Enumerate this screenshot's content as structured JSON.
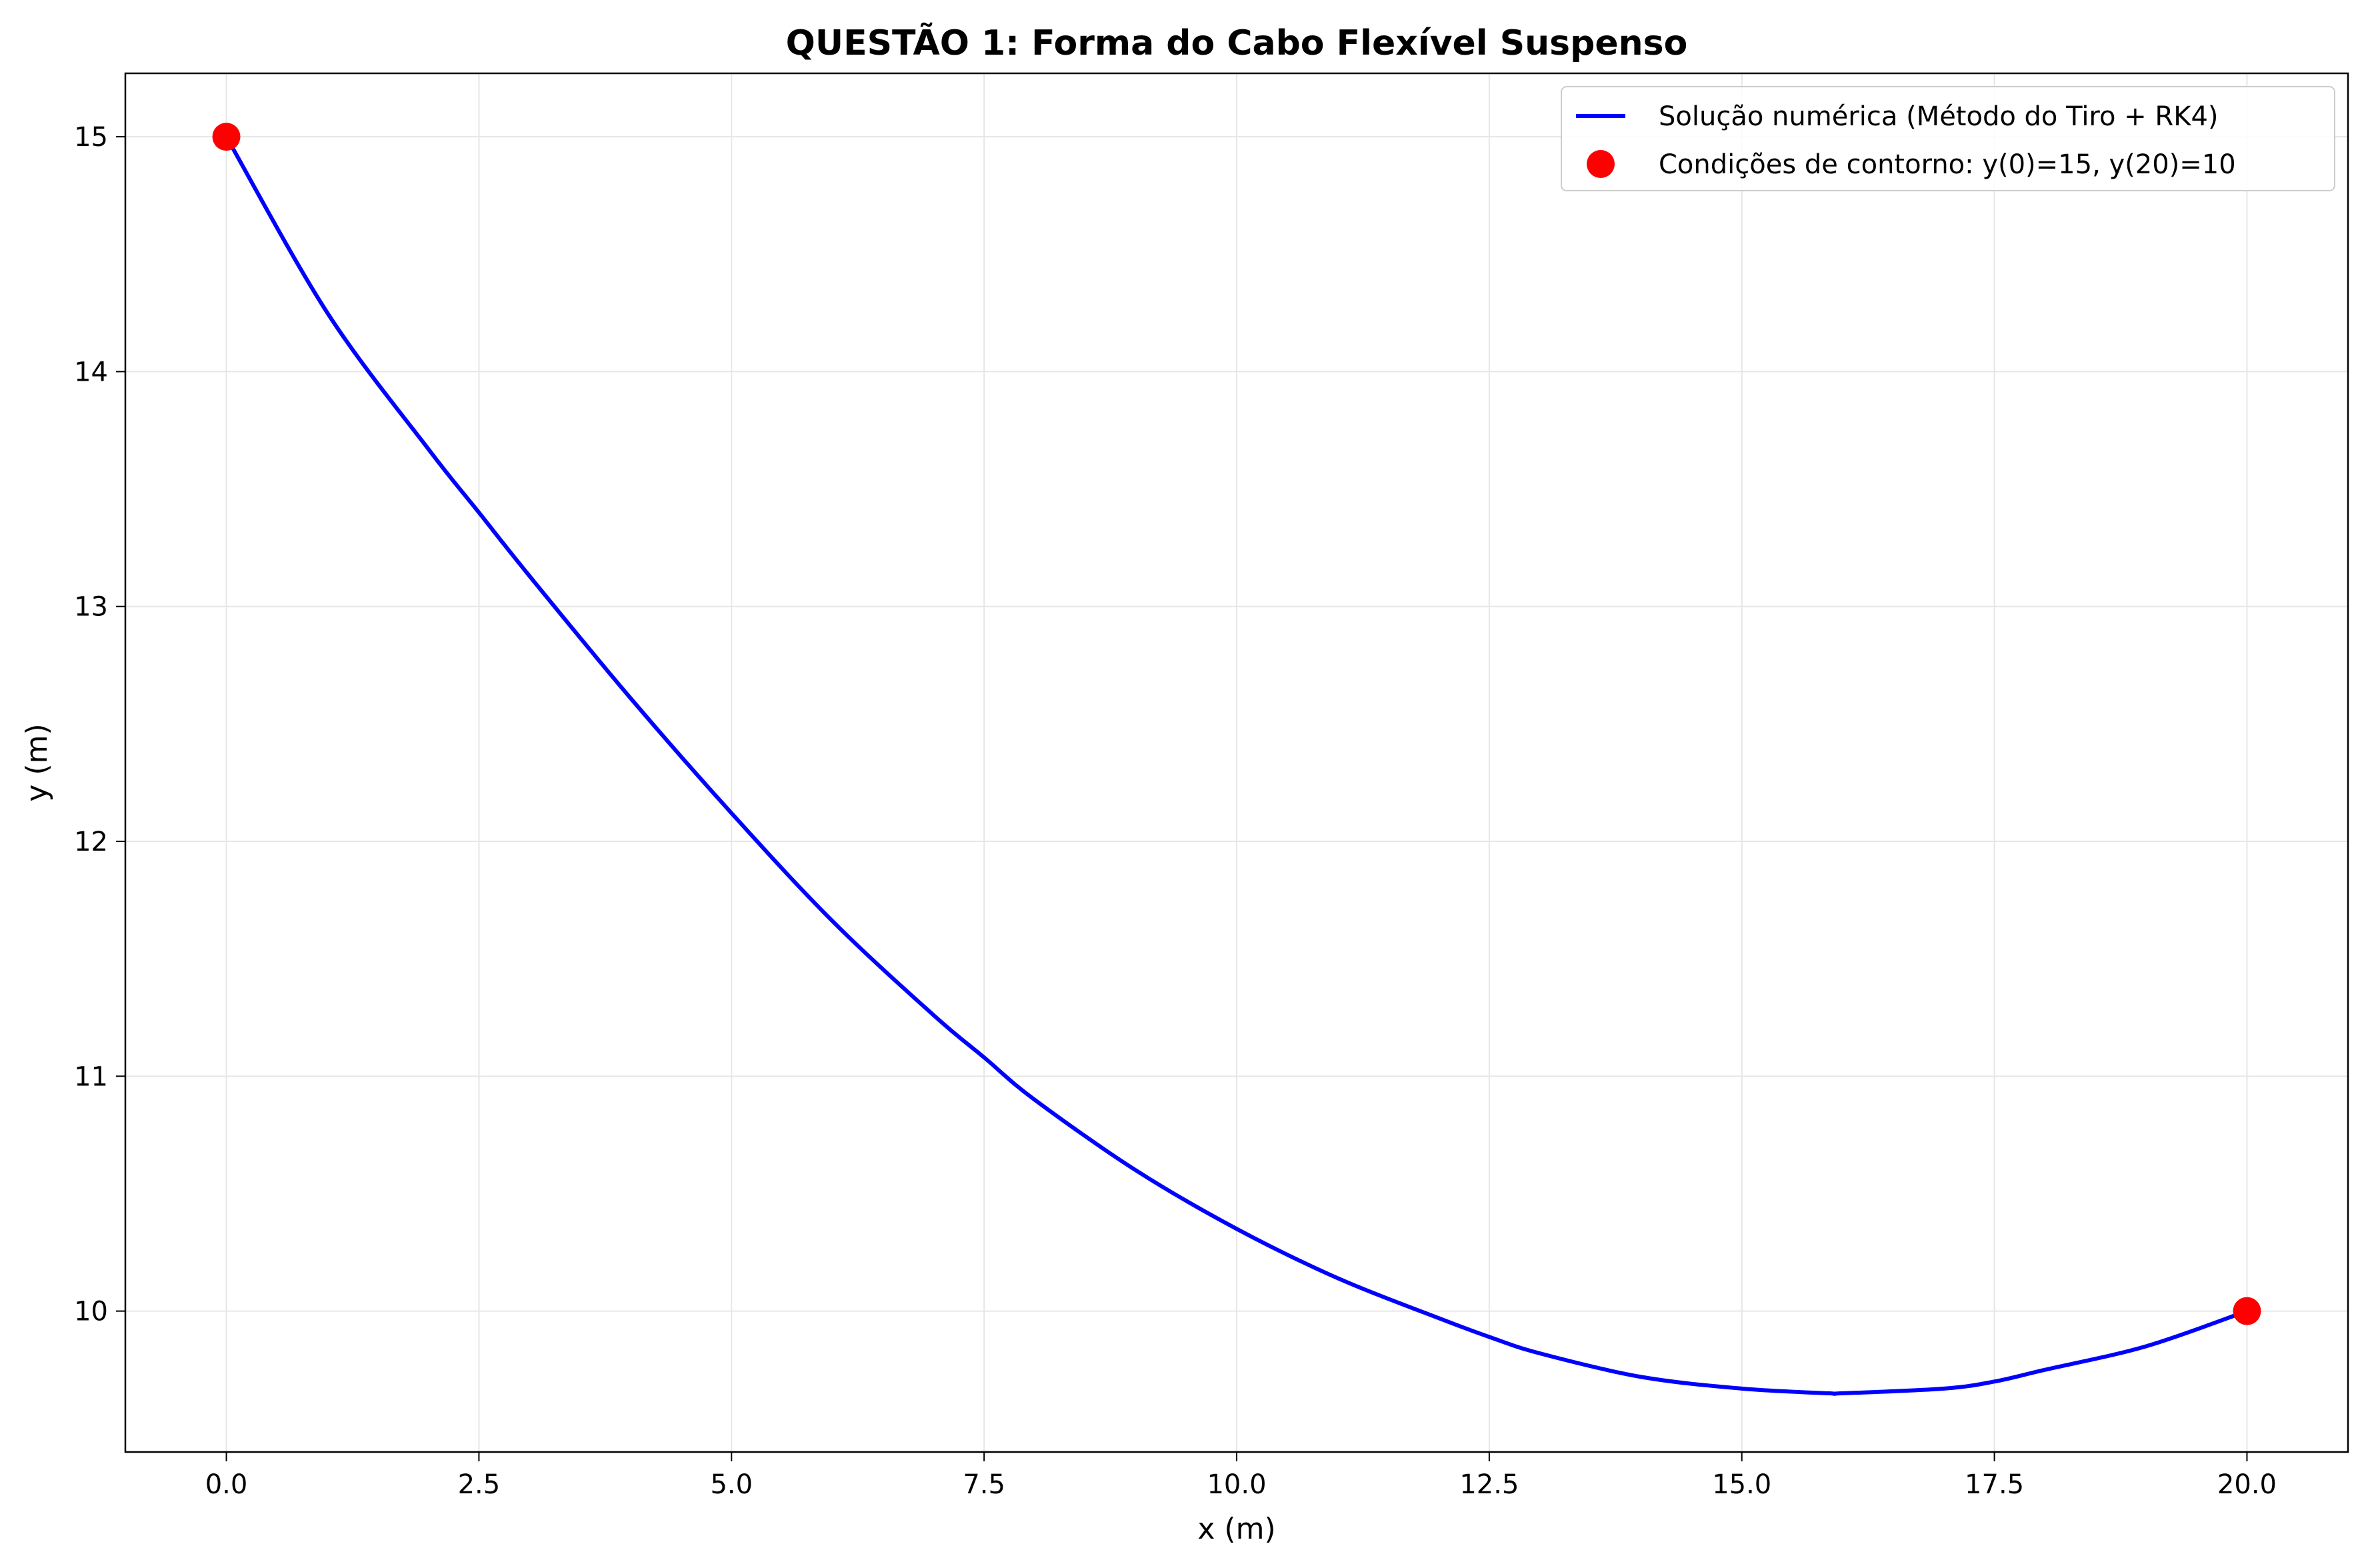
{
  "chart_data": {
    "type": "line",
    "title": "QUESTÃO 1: Forma do Cabo Flexível Suspenso",
    "xlabel": "x (m)",
    "ylabel": "y (m)",
    "xlim": [
      -1.0,
      21.0
    ],
    "ylim": [
      9.4,
      15.27
    ],
    "xticks": [
      0.0,
      2.5,
      5.0,
      7.5,
      10.0,
      12.5,
      15.0,
      17.5,
      20.0
    ],
    "xtick_labels": [
      "0.0",
      "2.5",
      "5.0",
      "7.5",
      "10.0",
      "12.5",
      "15.0",
      "17.5",
      "20.0"
    ],
    "yticks": [
      10,
      11,
      12,
      13,
      14,
      15
    ],
    "ytick_labels": [
      "10",
      "11",
      "12",
      "13",
      "14",
      "15"
    ],
    "grid": true,
    "legend_position": "top-right",
    "series": [
      {
        "name": "Solução numérica (Método do Tiro + RK4)",
        "kind": "line",
        "color": "#0000ff",
        "x": [
          0,
          1,
          2,
          2.5,
          3,
          4,
          5,
          6,
          7,
          7.5,
          8,
          9,
          10,
          11,
          12,
          12.5,
          13,
          14,
          15,
          15.85,
          16,
          17,
          17.5,
          18,
          19,
          20
        ],
        "y": [
          15.0,
          14.25,
          13.67,
          13.4,
          13.13,
          12.61,
          12.12,
          11.66,
          11.26,
          11.08,
          10.9,
          10.6,
          10.35,
          10.14,
          9.97,
          9.89,
          9.82,
          9.72,
          9.67,
          9.65,
          9.65,
          9.67,
          9.7,
          9.75,
          9.85,
          10.0
        ]
      },
      {
        "name": "Condições de contorno: y(0)=15, y(20)=10",
        "kind": "scatter",
        "color": "#ff0000",
        "x": [
          0,
          20
        ],
        "y": [
          15,
          10
        ]
      }
    ]
  }
}
